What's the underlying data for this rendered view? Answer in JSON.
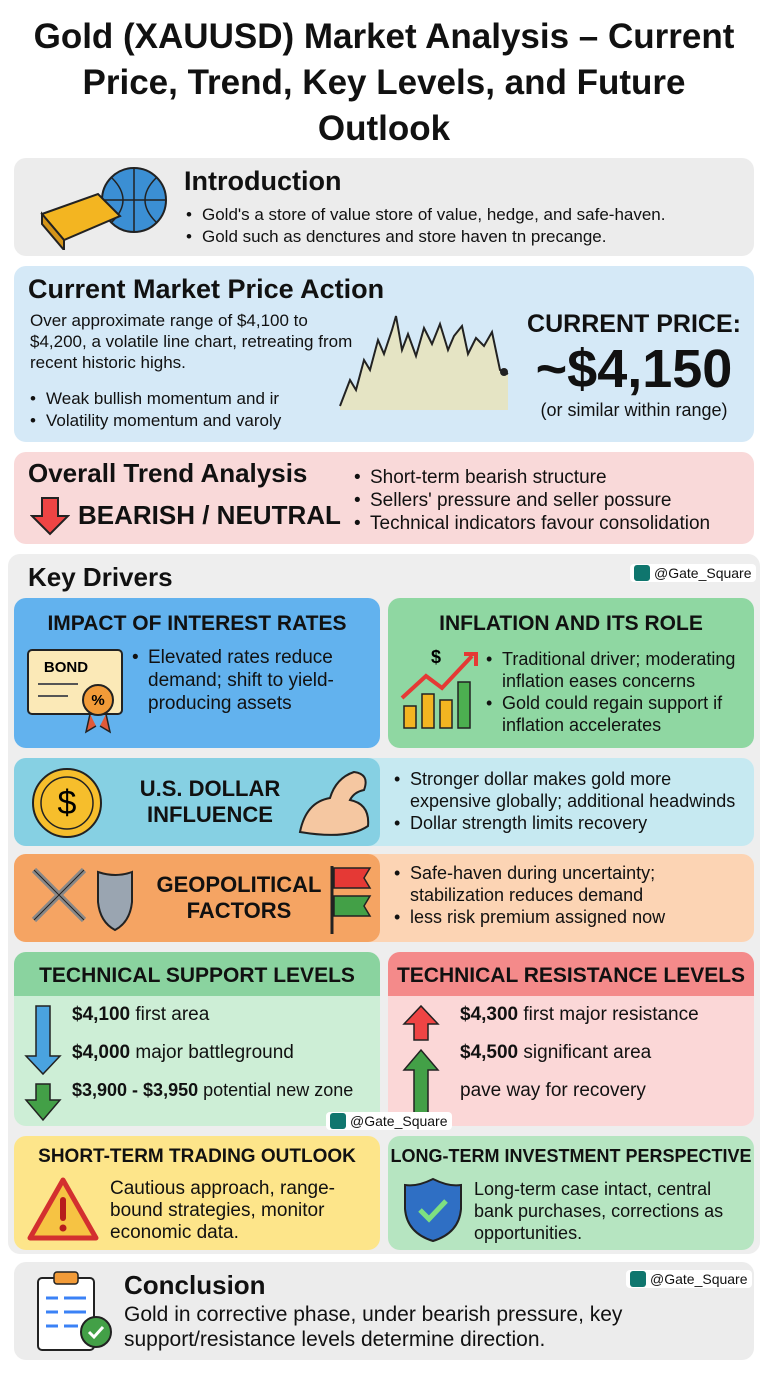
{
  "title": "Gold (XAUUSD) Market Analysis – Current Price, Trend, Key Levels, and Future Outlook",
  "introduction": {
    "heading": "Introduction",
    "bullets": [
      "Gold's a store of value store of value, hedge, and safe-haven.",
      "Gold such as denctures and store haven tn precange."
    ]
  },
  "price_action": {
    "heading": "Current Market Price Action",
    "summary": "Over approximate range of $4,100 to $4,200, a volatile line chart, retreating from recent historic highs.",
    "bullets": [
      "Weak bullish momentum and ir",
      "Volatility momentum and varoly"
    ],
    "current_label": "CURRENT PRICE:",
    "current_price": "~$4,150",
    "current_note": "(or similar within range)"
  },
  "trend": {
    "heading": "Overall Trend Analysis",
    "verdict": "BEARISH / NEUTRAL",
    "bullets": [
      "Short-term bearish structure",
      "Sellers' pressure and seller possure",
      "Technical indicators favour consolidation"
    ]
  },
  "key_drivers": {
    "heading": "Key Drivers",
    "handle": "@Gate_Square",
    "interest_rates": {
      "heading": "IMPACT OF INTEREST RATES",
      "icon_label": "BOND",
      "icon_symbol": "%",
      "bullets": [
        "Elevated rates reduce demand; shift to yield-producing assets"
      ]
    },
    "inflation": {
      "heading": "INFLATION AND ITS ROLE",
      "icon_symbol": "$",
      "bullets": [
        "Traditional driver; moderating inflation eases concerns",
        "Gold could regain support if inflation accelerates"
      ]
    },
    "dollar": {
      "heading": "U.S. DOLLAR INFLUENCE",
      "icon_symbol": "$",
      "bullets": [
        "Stronger dollar makes gold more expensive globally; additional headwinds",
        "Dollar strength limits recovery"
      ]
    },
    "geopolitical": {
      "heading": "GEOPOLITICAL FACTORS",
      "bullets": [
        "Safe-haven during uncertainty; stabilization reduces demand",
        "less risk premium assigned now"
      ]
    }
  },
  "technical": {
    "handle": "@Gate_Square",
    "support": {
      "heading": "TECHNICAL SUPPORT LEVELS",
      "levels": [
        {
          "price": "$4,100",
          "text": "first area"
        },
        {
          "price": "$4,000",
          "text": "major battleground"
        },
        {
          "price": "$3,900 - $3,950",
          "text": "potential new zone"
        }
      ]
    },
    "resistance": {
      "heading": "TECHNICAL RESISTANCE LEVELS",
      "levels": [
        {
          "price": "$4,300",
          "text": "first major resistance"
        },
        {
          "price": "$4,500",
          "text": "significant area"
        },
        {
          "text": "pave way for recovery"
        }
      ]
    }
  },
  "outlook": {
    "short_term": {
      "heading": "SHORT-TERM TRADING OUTLOOK",
      "text": "Cautious approach, range-bound strategies, monitor economic data."
    },
    "long_term": {
      "heading": "LONG-TERM INVESTMENT PERSPECTIVE",
      "text": "Long-term case intact, central bank purchases, corrections as opportunities."
    }
  },
  "conclusion": {
    "heading": "Conclusion",
    "text": "Gold in corrective phase, under bearish pressure, key support/resistance levels determine direction.",
    "handle": "@Gate_Square"
  }
}
